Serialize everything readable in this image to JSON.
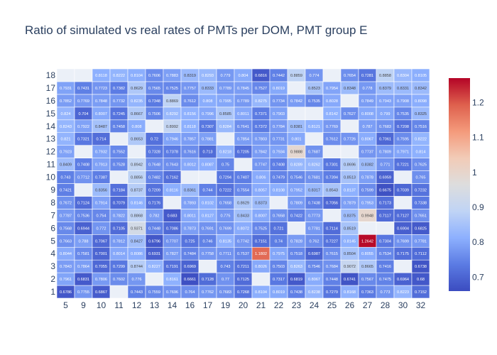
{
  "title": "Ratio of simulated vs real rates of PMTs per DOM, PMT group E",
  "chart_data": {
    "type": "heatmap",
    "title": "Ratio of simulated vs real rates of PMTs per DOM, PMT group E",
    "x_categories": [
      "5",
      "9",
      "10",
      "11",
      "12",
      "13",
      "14",
      "16",
      "17",
      "19",
      "20",
      "21",
      "22",
      "23",
      "24",
      "25",
      "26",
      "27",
      "28",
      "30",
      "32"
    ],
    "y_categories": [
      "1",
      "2",
      "3",
      "4",
      "5",
      "6",
      "7",
      "8",
      "9",
      "10",
      "11",
      "12",
      "13",
      "14",
      "15",
      "16",
      "17",
      "18"
    ],
    "z": [
      [
        0.6786,
        0.7755,
        0.6867,
        null,
        0.7443,
        0.7559,
        0.7696,
        0.764,
        0.7762,
        0.7683,
        0.7268,
        0.8104,
        0.8019,
        0.7438,
        0.8238,
        0.7279,
        0.8168,
        0.7363,
        0.773,
        0.8223,
        0.7152
      ],
      [
        0.7961,
        0.6831,
        0.7806,
        0.7602,
        0.776,
        null,
        0.8161,
        0.6661,
        0.7128,
        0.77,
        0.7125,
        null,
        0.7317,
        0.6819,
        0.8067,
        0.7448,
        0.6741,
        0.7567,
        0.7475,
        0.6964,
        0.68
      ],
      [
        0.7843,
        0.7864,
        0.7055,
        0.7299,
        0.8744,
        0.8227,
        0.7191,
        0.6969,
        null,
        0.743,
        0.7211,
        0.8026,
        0.7503,
        0.8263,
        0.7546,
        0.7684,
        0.9072,
        0.8665,
        0.7416,
        null,
        0.6738
      ],
      [
        0.8044,
        0.7581,
        0.7001,
        0.8014,
        0.8086,
        0.6931,
        0.7827,
        0.7484,
        0.7758,
        0.7711,
        0.7537,
        1.1802,
        0.7975,
        0.7518,
        0.6987,
        0.7615,
        0.8504,
        0.8055,
        0.7534,
        0.7175,
        0.7112
      ],
      [
        0.7663,
        0.788,
        0.7067,
        0.7812,
        0.8427,
        0.6796,
        0.7707,
        0.725,
        0.746,
        0.8135,
        0.7742,
        0.7151,
        0.74,
        0.7828,
        0.762,
        0.7227,
        0.8145,
        1.2642,
        0.7304,
        0.7699,
        0.7781
      ],
      [
        0.7568,
        0.6944,
        0.772,
        0.7105,
        0.9371,
        0.7448,
        0.7086,
        0.7873,
        0.7691,
        0.7699,
        0.8072,
        0.7525,
        0.721,
        null,
        0.7781,
        0.7114,
        0.8519,
        null,
        null,
        0.6904,
        0.6825
      ],
      [
        0.7787,
        0.7536,
        0.754,
        0.7822,
        0.8868,
        0.782,
        0.683,
        0.8011,
        0.8127,
        0.775,
        0.8433,
        0.8007,
        0.7658,
        0.7422,
        0.7773,
        null,
        0.8375,
        0.9948,
        0.7117,
        0.7127,
        0.7651
      ],
      [
        0.7672,
        0.7124,
        0.7914,
        0.7079,
        0.8146,
        0.7176,
        null,
        0.7893,
        0.8102,
        0.7658,
        0.8629,
        0.8373,
        null,
        0.7809,
        0.7438,
        0.7056,
        0.7879,
        0.7953,
        0.7173,
        null,
        0.7338
      ],
      [
        0.7421,
        null,
        0.8356,
        0.7184,
        0.8737,
        0.7209,
        0.8116,
        0.8361,
        0.744,
        0.7222,
        0.7554,
        0.8057,
        0.8108,
        0.7952,
        0.8317,
        0.8543,
        0.8137,
        0.7599,
        0.6675,
        0.7039,
        0.7232
      ],
      [
        0.743,
        0.7712,
        0.7387,
        null,
        0.8856,
        0.7482,
        0.7162,
        null,
        null,
        0.7294,
        0.7407,
        0.806,
        0.7479,
        0.7546,
        0.7681,
        0.7394,
        0.8513,
        0.7878,
        0.6959,
        null,
        0.765
      ],
      [
        0.8409,
        0.7408,
        0.7913,
        0.7528,
        0.8942,
        0.7648,
        0.7643,
        0.8012,
        0.8087,
        0.75,
        null,
        0.7747,
        0.7408,
        0.8289,
        0.8262,
        0.7301,
        0.8696,
        0.8382,
        0.771,
        0.7221,
        0.7625
      ],
      [
        0.7923,
        null,
        0.7932,
        0.7552,
        null,
        0.7328,
        0.7378,
        0.7616,
        0.713,
        0.8218,
        0.7205,
        0.7842,
        0.7934,
        0.9888,
        0.7687,
        null,
        null,
        0.7737,
        0.7809,
        0.7971,
        0.814
      ],
      [
        0.821,
        0.7321,
        0.714,
        null,
        0.8653,
        0.72,
        0.7946,
        0.7857,
        0.7881,
        null,
        0.7854,
        0.7803,
        0.7731,
        0.801,
        null,
        0.7612,
        0.7726,
        0.8067,
        0.7061,
        0.7595,
        0.8222
      ],
      [
        0.8243,
        0.7922,
        0.8487,
        0.7458,
        0.808,
        null,
        0.8992,
        0.8118,
        0.7307,
        0.8284,
        0.7641,
        0.7372,
        0.7784,
        0.8381,
        0.8121,
        0.7769,
        null,
        0.787,
        0.7683,
        0.7208,
        0.7516
      ],
      [
        0.824,
        0.704,
        0.8007,
        0.7245,
        0.8667,
        0.7506,
        0.8292,
        0.8156,
        0.7996,
        0.8585,
        0.8011,
        0.7371,
        0.7903,
        null,
        null,
        0.8142,
        0.7627,
        0.8008,
        0.799,
        0.7535,
        0.8325
      ],
      [
        0.7852,
        0.7769,
        0.7848,
        0.7732,
        0.8235,
        0.7348,
        0.8869,
        0.7612,
        0.808,
        0.7995,
        0.7789,
        0.8275,
        0.7734,
        0.7842,
        0.7535,
        0.8028,
        null,
        0.7849,
        0.7943,
        0.7908,
        0.8098
      ],
      [
        0.7931,
        0.7431,
        0.7723,
        0.7382,
        0.8629,
        0.7565,
        0.7525,
        0.7757,
        0.8333,
        0.7789,
        0.7845,
        0.7527,
        0.8019,
        null,
        0.8523,
        0.7954,
        0.8348,
        0.778,
        0.8379,
        0.8331,
        0.8342
      ],
      [
        null,
        null,
        0.8118,
        0.8222,
        0.8104,
        0.7606,
        0.7883,
        0.8319,
        0.8293,
        0.779,
        0.804,
        0.6816,
        0.7442,
        0.8859,
        0.774,
        null,
        0.7654,
        0.7281,
        0.8858,
        0.8304,
        0.8105
      ]
    ],
    "zmin": 0.66,
    "zmax": 1.27,
    "colorscale": [
      "#3b4cc0",
      "#5b7be3",
      "#8db0fe",
      "#c0d4f5",
      "#dddddd",
      "#f2cbb7",
      "#f49a7b",
      "#de604d",
      "#b40426"
    ],
    "missing_color": "#ebf0f8",
    "colorbar_ticks": [
      "0.7",
      "0.8",
      "0.9",
      "1",
      "1.1",
      "1.2"
    ],
    "colorbar_tick_values": [
      0.7,
      0.8,
      0.9,
      1.0,
      1.1,
      1.2
    ]
  }
}
